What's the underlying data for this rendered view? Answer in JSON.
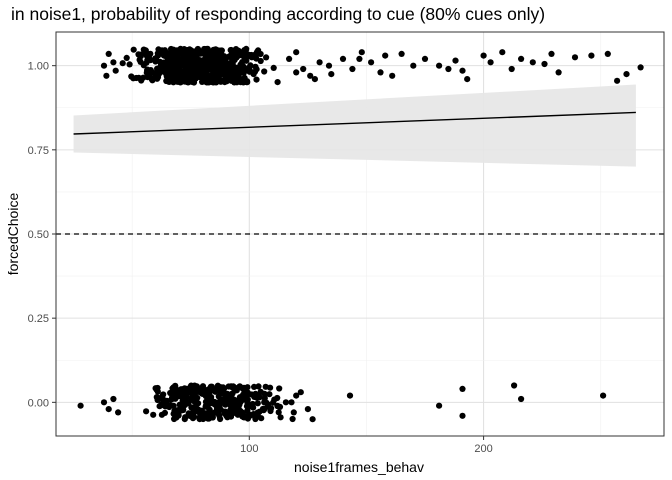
{
  "chart_data": {
    "type": "scatter",
    "title": "in noise1, probability of responding according to cue (80% cues only)",
    "xlabel": "noise1frames_behav",
    "ylabel": "forcedChoice",
    "x_ticks": [
      {
        "value": 100,
        "label": "100"
      },
      {
        "value": 200,
        "label": "200"
      }
    ],
    "y_ticks": [
      {
        "value": 0,
        "label": "0.00"
      },
      {
        "value": 0.25,
        "label": "0.25"
      },
      {
        "value": 0.5,
        "label": "0.50"
      },
      {
        "value": 0.75,
        "label": "0.75"
      },
      {
        "value": 1,
        "label": "1.00"
      }
    ],
    "xlim": [
      17.5,
      277
    ],
    "ylim": [
      -0.1,
      1.1
    ],
    "grid": true,
    "reference_line": {
      "y": 0.5,
      "style": "dashed",
      "color": "#000000"
    },
    "fit": {
      "x": [
        25,
        265
      ],
      "y": [
        0.797,
        0.861
      ],
      "ci_lower": [
        0.742,
        0.7
      ],
      "ci_upper": [
        0.852,
        0.944
      ],
      "ci_color": "#e6e6e6"
    },
    "jitter_height": 0.05,
    "point_color": "#000000",
    "points_cluster_1": [
      {
        "x_range": [
          42,
          115
        ],
        "y": 1,
        "count": 620
      },
      {
        "x_range": [
          45,
          125
        ],
        "y": 0,
        "count": 330
      }
    ],
    "points_individual_1": [
      [
        40,
        1.035
      ],
      [
        42,
        1.01
      ],
      [
        43,
        0.985
      ],
      [
        38,
        1.0
      ],
      [
        39,
        0.97
      ],
      [
        117,
        1.02
      ],
      [
        120,
        0.98
      ],
      [
        126,
        0.97
      ],
      [
        130,
        1.01
      ],
      [
        135,
        0.975
      ],
      [
        140,
        1.02
      ],
      [
        144,
        0.99
      ],
      [
        148,
        1.04
      ],
      [
        152,
        1.01
      ],
      [
        158,
        1.03
      ],
      [
        161,
        0.97
      ],
      [
        165,
        1.035
      ],
      [
        170,
        1.0
      ],
      [
        175,
        1.02
      ],
      [
        181,
        1.0
      ],
      [
        185,
        0.99
      ],
      [
        188,
        1.015
      ],
      [
        191,
        0.985
      ],
      [
        193,
        0.96
      ],
      [
        200,
        1.03
      ],
      [
        203,
        1.01
      ],
      [
        208,
        1.04
      ],
      [
        212,
        0.99
      ],
      [
        216,
        1.02
      ],
      [
        221,
        1.01
      ],
      [
        226,
        1.005
      ],
      [
        229,
        1.035
      ],
      [
        232,
        0.98
      ],
      [
        239,
        1.025
      ],
      [
        246,
        1.03
      ],
      [
        253,
        1.035
      ],
      [
        257,
        0.955
      ],
      [
        261,
        0.975
      ],
      [
        267,
        0.995
      ],
      [
        120,
        1.04
      ],
      [
        123,
        0.99
      ],
      [
        128,
        0.96
      ],
      [
        134,
        1.0
      ],
      [
        147,
        1.02
      ],
      [
        156,
        0.98
      ]
    ],
    "points_individual_0": [
      [
        28,
        -0.01
      ],
      [
        38,
        0.0
      ],
      [
        40,
        -0.02
      ],
      [
        42,
        0.01
      ],
      [
        44,
        -0.03
      ],
      [
        120,
        0.02
      ],
      [
        125,
        -0.02
      ],
      [
        127,
        -0.05
      ],
      [
        143,
        0.02
      ],
      [
        181,
        -0.01
      ],
      [
        191,
        0.04
      ],
      [
        191,
        -0.04
      ],
      [
        213,
        0.05
      ],
      [
        216,
        0.01
      ],
      [
        251,
        0.02
      ],
      [
        118,
        0.0
      ],
      [
        122,
        0.03
      ],
      [
        119,
        -0.03
      ]
    ]
  }
}
